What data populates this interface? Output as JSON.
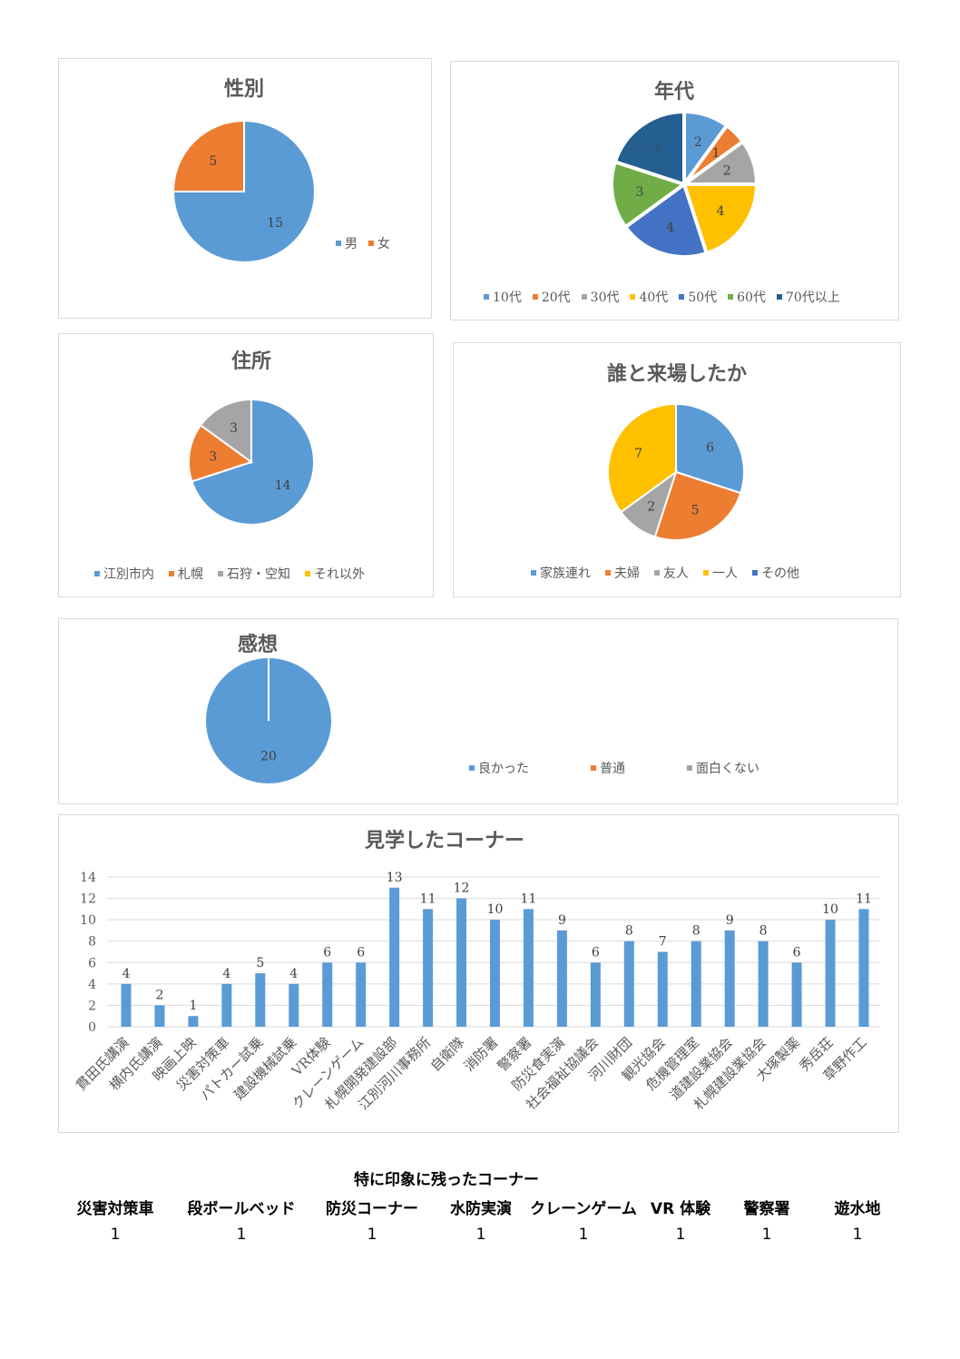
{
  "colors": [
    "#5b9bd5",
    "#ed7d31",
    "#a5a5a5",
    "#ffc000",
    "#4472c4",
    "#70ad47",
    "#255e91"
  ],
  "chart_data": [
    {
      "type": "pie",
      "title": "性別",
      "labels": [
        "男",
        "女"
      ],
      "values": [
        15,
        5
      ]
    },
    {
      "type": "pie",
      "title": "年代",
      "labels": [
        "10代",
        "20代",
        "30代",
        "40代",
        "50代",
        "60代",
        "70代以上"
      ],
      "values": [
        2,
        1,
        2,
        4,
        4,
        3,
        4
      ]
    },
    {
      "type": "pie",
      "title": "住所",
      "labels": [
        "江別市内",
        "札幌",
        "石狩・空知",
        "それ以外"
      ],
      "values": [
        14,
        3,
        3,
        0
      ]
    },
    {
      "type": "pie",
      "title": "誰と来場したか",
      "labels": [
        "家族連れ",
        "夫婦",
        "友人",
        "一人",
        "その他"
      ],
      "values": [
        6,
        5,
        2,
        7,
        0
      ]
    },
    {
      "type": "pie",
      "title": "感想",
      "labels": [
        "良かった",
        "普通",
        "面白くない"
      ],
      "values": [
        20,
        0,
        0
      ]
    },
    {
      "type": "bar",
      "title": "見学したコーナー",
      "ylim": [
        0,
        14
      ],
      "yticks": [
        0,
        2,
        4,
        6,
        8,
        10,
        12,
        14
      ],
      "categories": [
        "貫田氏講演",
        "横内氏講演",
        "映画上映",
        "災害対策車",
        "パトカー試乗",
        "建設機械試乗",
        "VR体験",
        "クレーンゲーム",
        "札幌開発建設部",
        "江別河川事務所",
        "自衛隊",
        "消防署",
        "警察署",
        "防災食実演",
        "社会福祉協議会",
        "河川財団",
        "観光協会",
        "危機管理室",
        "道建設業協会",
        "札幌建設業協会",
        "大塚製薬",
        "秀岳荘",
        "草野作工"
      ],
      "values": [
        4,
        2,
        1,
        4,
        5,
        4,
        6,
        6,
        13,
        11,
        12,
        10,
        11,
        9,
        6,
        8,
        7,
        8,
        9,
        8,
        6,
        10,
        11
      ]
    }
  ],
  "table": {
    "title": "特に印象に残ったコーナー",
    "headers": [
      "災害対策車",
      "段ボールベッド",
      "防災コーナー",
      "水防実演",
      "クレーンゲーム",
      "VR 体験",
      "警察署",
      "遊水地"
    ],
    "values": [
      "1",
      "1",
      "1",
      "1",
      "1",
      "1",
      "1",
      "1"
    ]
  }
}
